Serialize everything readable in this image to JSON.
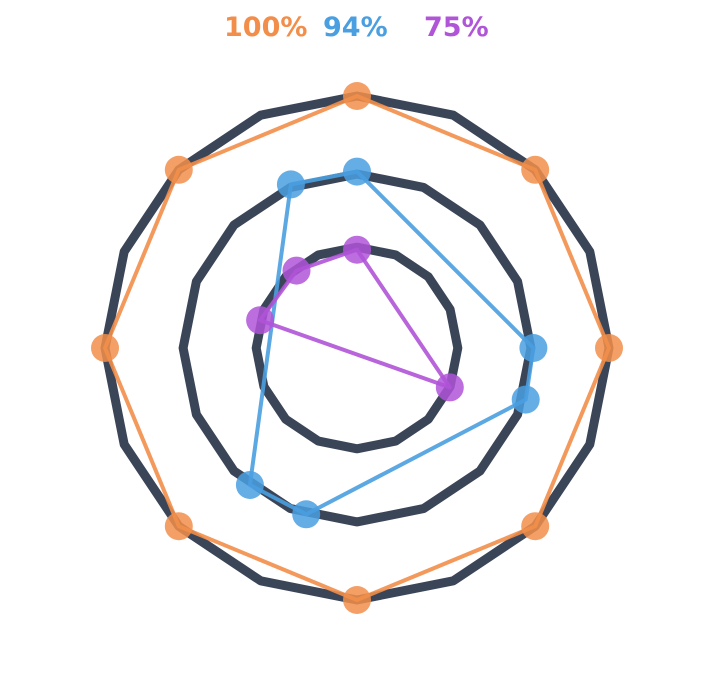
{
  "chart_data": {
    "type": "radar",
    "legend_placement": "top",
    "grid": true,
    "rings": [
      {
        "radius": 100,
        "sides": 16
      },
      {
        "radius": 69,
        "sides": 16
      },
      {
        "radius": 40,
        "sides": 16
      }
    ],
    "series": [
      {
        "label": "100%",
        "color": "#f28e4a",
        "points": [
          {
            "angle": 0,
            "radius": 100
          },
          {
            "angle": 45,
            "radius": 100
          },
          {
            "angle": 90,
            "radius": 100
          },
          {
            "angle": 135,
            "radius": 100
          },
          {
            "angle": 180,
            "radius": 100
          },
          {
            "angle": 225,
            "radius": 100
          },
          {
            "angle": 270,
            "radius": 100
          },
          {
            "angle": 315,
            "radius": 100
          }
        ]
      },
      {
        "label": "94%",
        "color": "#4a9fe0",
        "points": [
          {
            "angle": 0,
            "radius": 70
          },
          {
            "angle": 90,
            "radius": 70
          },
          {
            "angle": 112,
            "radius": 70
          },
          {
            "angle": 232,
            "radius": 69
          },
          {
            "angle": 253,
            "radius": 69
          },
          {
            "angle": 343,
            "radius": 70
          }
        ]
      },
      {
        "label": "75%",
        "color": "#b054d8",
        "points": [
          {
            "angle": 90,
            "radius": 39
          },
          {
            "angle": 128,
            "radius": 39
          },
          {
            "angle": 164,
            "radius": 40
          },
          {
            "angle": 337,
            "radius": 40
          }
        ]
      }
    ]
  }
}
